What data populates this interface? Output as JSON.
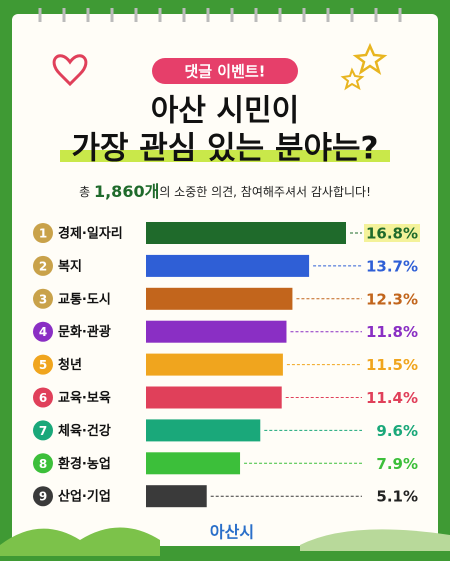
{
  "chart_data": {
    "type": "bar",
    "badge": "댓글 이벤트!",
    "title": "아산 시민이",
    "title_line2": "가장 관심 있는 분야는?",
    "subtitle": {
      "prefix": "총",
      "count": "1,860개",
      "suffix": "의 소중한 의견, 참여해주셔서 감사합니다!"
    },
    "ranks": [
      1,
      2,
      3,
      4,
      5,
      6,
      7,
      8,
      9
    ],
    "categories": [
      "경제·일자리",
      "복지",
      "교통·도시",
      "문화·관광",
      "청년",
      "교육·보육",
      "체육·건강",
      "환경·농업",
      "산업·기업"
    ],
    "values": [
      16.8,
      13.7,
      12.3,
      11.8,
      11.5,
      11.4,
      9.6,
      7.9,
      5.1
    ],
    "value_labels": [
      "16.8%",
      "13.7%",
      "12.3%",
      "11.8%",
      "11.5%",
      "11.4%",
      "9.6%",
      "7.9%",
      "5.1%"
    ],
    "colors": [
      "#1f6a2b",
      "#2f5fd6",
      "#c2651c",
      "#8a2fc4",
      "#f0a51e",
      "#e0405a",
      "#1aa87a",
      "#3cbf3a",
      "#3a3a3a"
    ],
    "logo": "아산시"
  }
}
